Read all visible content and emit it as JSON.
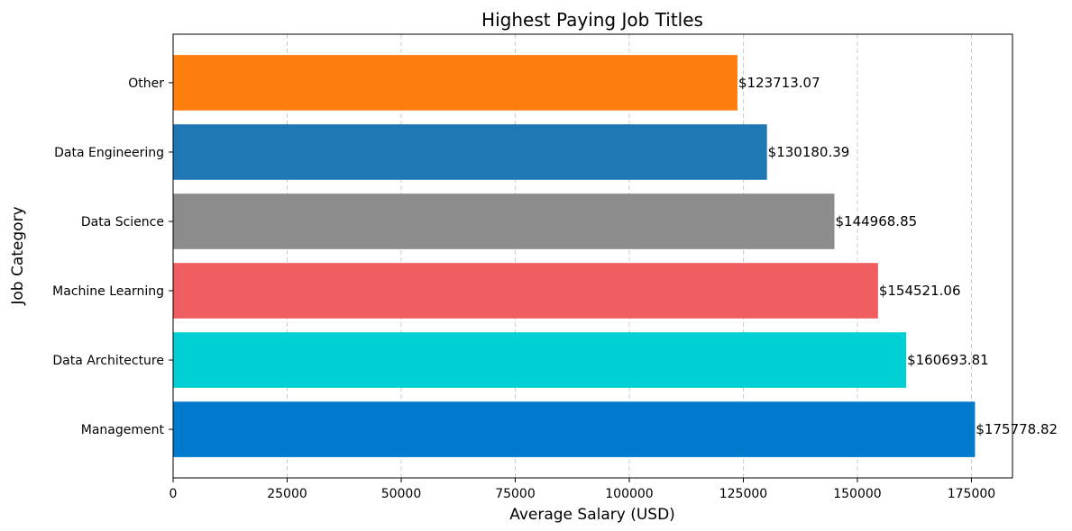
{
  "chart_data": {
    "type": "bar",
    "orientation": "horizontal",
    "title": "Highest Paying Job Titles",
    "xlabel": "Average Salary (USD)",
    "ylabel": "Job Category",
    "xlim": [
      0,
      184000
    ],
    "xticks": [
      0,
      25000,
      50000,
      75000,
      100000,
      125000,
      150000,
      175000
    ],
    "xtick_labels": [
      "0",
      "25000",
      "50000",
      "75000",
      "100000",
      "125000",
      "150000",
      "175000"
    ],
    "grid": "x-dashed",
    "categories": [
      "Management",
      "Data Architecture",
      "Machine Learning",
      "Data Science",
      "Data Engineering",
      "Other"
    ],
    "values": [
      175778.82,
      160693.81,
      154521.06,
      144968.85,
      130180.39,
      123713.07
    ],
    "value_labels": [
      "$175778.82",
      "$160693.81",
      "$154521.06",
      "$144968.85",
      "$130180.39",
      "$123713.07"
    ],
    "colors": [
      "#007acc",
      "#00d0d4",
      "#ef5d60",
      "#8c8c8c",
      "#1f77b4",
      "#ff7f0e"
    ]
  }
}
